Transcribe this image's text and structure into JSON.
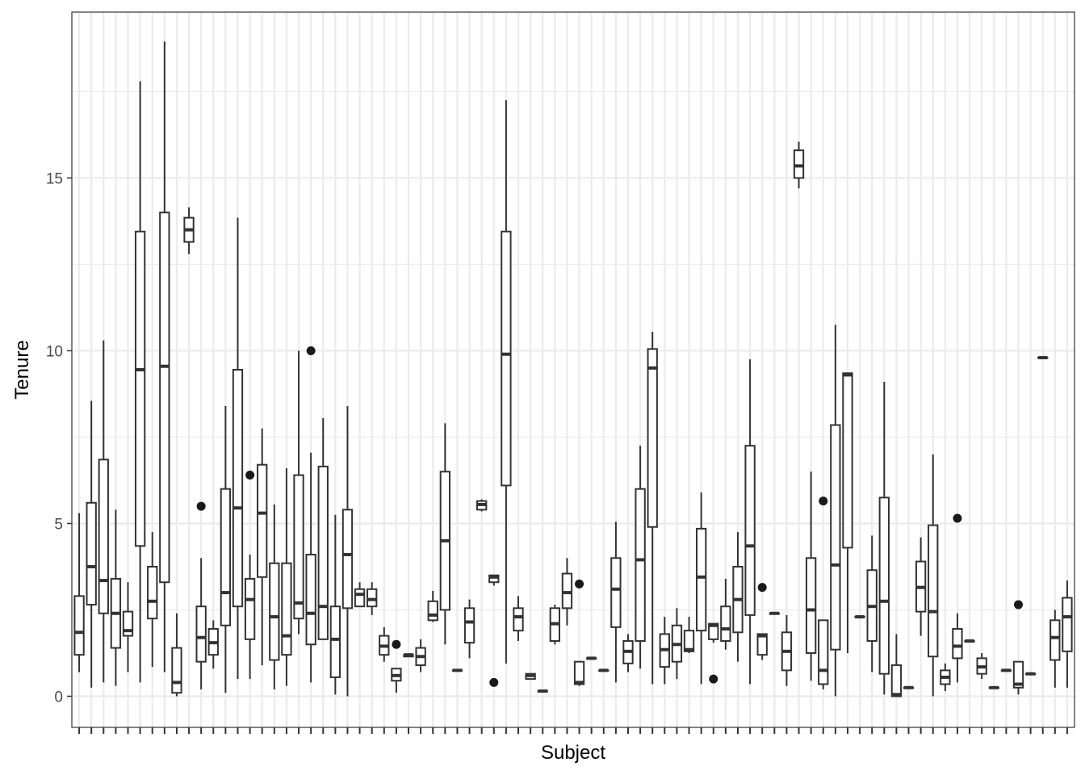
{
  "chart_data": {
    "type": "boxplot",
    "xlabel": "Subject",
    "ylabel": "Tenure",
    "ylim": [
      -0.9,
      19.8
    ],
    "y_ticks": [
      0,
      5,
      10,
      15
    ],
    "y_tick_labels": [
      "0",
      "5",
      "10",
      "15"
    ],
    "x_tick_labels_visible": false,
    "grid": true,
    "legend": "none",
    "theme": "bw",
    "colors": {
      "box_line": "#333333",
      "outlier": "#1a1a1a",
      "grid": "#ebebeb",
      "panel_border": "#333333"
    },
    "boxes": [
      {
        "lw": 0.7,
        "q1": 1.2,
        "med": 1.85,
        "q3": 2.9,
        "up": 5.3
      },
      {
        "lw": 0.25,
        "q1": 2.65,
        "med": 3.75,
        "q3": 5.6,
        "up": 8.55
      },
      {
        "lw": 0.4,
        "q1": 2.4,
        "med": 3.35,
        "q3": 6.85,
        "up": 10.3
      },
      {
        "lw": 0.3,
        "q1": 1.4,
        "med": 2.4,
        "q3": 3.4,
        "up": 5.4
      },
      {
        "lw": 0.7,
        "q1": 1.75,
        "med": 1.9,
        "q3": 2.45,
        "up": 3.3
      },
      {
        "lw": 0.4,
        "q1": 4.35,
        "med": 9.45,
        "q3": 13.45,
        "up": 17.8
      },
      {
        "lw": 0.85,
        "q1": 2.25,
        "med": 2.75,
        "q3": 3.75,
        "up": 4.75
      },
      {
        "lw": 0.7,
        "q1": 3.3,
        "med": 9.55,
        "q3": 14.0,
        "up": 18.95
      },
      {
        "lw": 0.0,
        "q1": 0.1,
        "med": 0.4,
        "q3": 1.4,
        "up": 2.4
      },
      {
        "lw": 12.8,
        "q1": 13.15,
        "med": 13.5,
        "q3": 13.85,
        "up": 14.15
      },
      {
        "lw": 0.2,
        "q1": 1.0,
        "med": 1.7,
        "q3": 2.6,
        "up": 4.0,
        "out": [
          5.5
        ]
      },
      {
        "lw": 0.8,
        "q1": 1.2,
        "med": 1.55,
        "q3": 1.95,
        "up": 2.2
      },
      {
        "lw": 0.1,
        "q1": 2.05,
        "med": 3.0,
        "q3": 6.0,
        "up": 8.4
      },
      {
        "lw": 0.5,
        "q1": 2.6,
        "med": 5.45,
        "q3": 9.45,
        "up": 13.85
      },
      {
        "lw": 0.5,
        "q1": 1.65,
        "med": 2.8,
        "q3": 3.4,
        "up": 4.1,
        "out": [
          6.4
        ]
      },
      {
        "lw": 0.9,
        "q1": 3.45,
        "med": 5.3,
        "q3": 6.7,
        "up": 7.75
      },
      {
        "lw": 0.2,
        "q1": 1.05,
        "med": 2.3,
        "q3": 3.85,
        "up": 5.55
      },
      {
        "lw": 0.3,
        "q1": 1.2,
        "med": 1.75,
        "q3": 3.85,
        "up": 6.6
      },
      {
        "lw": 1.8,
        "q1": 2.25,
        "med": 2.7,
        "q3": 6.4,
        "up": 10.0
      },
      {
        "lw": 0.4,
        "q1": 1.5,
        "med": 2.4,
        "q3": 4.1,
        "up": 7.05,
        "out": [
          10.0
        ]
      },
      {
        "lw": 1.7,
        "q1": 1.65,
        "med": 2.6,
        "q3": 6.65,
        "up": 8.05
      },
      {
        "lw": 0.05,
        "q1": 0.55,
        "med": 1.65,
        "q3": 2.6,
        "up": 5.25
      },
      {
        "lw": 0.0,
        "q1": 2.55,
        "med": 4.1,
        "q3": 5.4,
        "up": 8.4
      },
      {
        "lw": 2.6,
        "q1": 2.6,
        "med": 2.95,
        "q3": 3.1,
        "up": 3.3
      },
      {
        "lw": 2.35,
        "q1": 2.6,
        "med": 2.8,
        "q3": 3.1,
        "up": 3.3
      },
      {
        "lw": 1.0,
        "q1": 1.2,
        "med": 1.45,
        "q3": 1.75,
        "up": 2.0
      },
      {
        "lw": 0.1,
        "q1": 0.45,
        "med": 0.6,
        "q3": 0.8,
        "up": 0.8,
        "out": [
          1.5
        ]
      },
      {
        "lw": 1.15,
        "q1": 1.15,
        "med": 1.2,
        "q3": 1.2,
        "up": 1.2
      },
      {
        "lw": 0.7,
        "q1": 0.9,
        "med": 1.15,
        "q3": 1.4,
        "up": 1.65
      },
      {
        "lw": 2.15,
        "q1": 2.2,
        "med": 2.35,
        "q3": 2.75,
        "up": 3.05
      },
      {
        "lw": 1.5,
        "q1": 2.5,
        "med": 4.5,
        "q3": 6.5,
        "up": 7.9
      },
      {
        "lw": 0.75,
        "q1": 0.75,
        "med": 0.75,
        "q3": 0.75,
        "up": 0.75
      },
      {
        "lw": 1.1,
        "q1": 1.55,
        "med": 2.15,
        "q3": 2.55,
        "up": 2.8
      },
      {
        "lw": 5.35,
        "q1": 5.4,
        "med": 5.55,
        "q3": 5.65,
        "up": 5.7
      },
      {
        "lw": 3.2,
        "q1": 3.3,
        "med": 3.45,
        "q3": 3.5,
        "up": 3.5,
        "out": [
          0.4
        ]
      },
      {
        "lw": 0.95,
        "q1": 6.1,
        "med": 9.9,
        "q3": 13.45,
        "up": 17.25
      },
      {
        "lw": 1.6,
        "q1": 1.9,
        "med": 2.3,
        "q3": 2.55,
        "up": 2.9
      },
      {
        "lw": 0.5,
        "q1": 0.5,
        "med": 0.6,
        "q3": 0.65,
        "up": 0.65
      },
      {
        "lw": 0.15,
        "q1": 0.15,
        "med": 0.15,
        "q3": 0.15,
        "up": 0.15
      },
      {
        "lw": 1.5,
        "q1": 1.6,
        "med": 2.1,
        "q3": 2.55,
        "up": 2.65
      },
      {
        "lw": 2.05,
        "q1": 2.55,
        "med": 3.0,
        "q3": 3.55,
        "up": 4.0
      },
      {
        "lw": 0.3,
        "q1": 0.35,
        "med": 0.4,
        "q3": 1.0,
        "up": 1.0,
        "out": [
          3.25
        ]
      },
      {
        "lw": 1.1,
        "q1": 1.1,
        "med": 1.1,
        "q3": 1.1,
        "up": 1.1
      },
      {
        "lw": 0.75,
        "q1": 0.75,
        "med": 0.75,
        "q3": 0.75,
        "up": 0.75
      },
      {
        "lw": 0.4,
        "q1": 2.0,
        "med": 3.1,
        "q3": 4.0,
        "up": 5.05
      },
      {
        "lw": 0.7,
        "q1": 0.95,
        "med": 1.3,
        "q3": 1.6,
        "up": 1.8
      },
      {
        "lw": 0.8,
        "q1": 1.6,
        "med": 3.95,
        "q3": 6.0,
        "up": 7.25
      },
      {
        "lw": 0.35,
        "q1": 4.9,
        "med": 9.5,
        "q3": 10.05,
        "up": 10.55
      },
      {
        "lw": 0.35,
        "q1": 0.85,
        "med": 1.35,
        "q3": 1.8,
        "up": 2.3
      },
      {
        "lw": 0.5,
        "q1": 1.0,
        "med": 1.5,
        "q3": 2.05,
        "up": 2.55
      },
      {
        "lw": 1.25,
        "q1": 1.3,
        "med": 1.35,
        "q3": 1.9,
        "up": 2.3
      },
      {
        "lw": 0.35,
        "q1": 1.9,
        "med": 3.45,
        "q3": 4.85,
        "up": 5.9
      },
      {
        "lw": 1.55,
        "q1": 1.65,
        "med": 2.05,
        "q3": 2.1,
        "up": 2.1,
        "out": [
          0.5
        ]
      },
      {
        "lw": 1.35,
        "q1": 1.6,
        "med": 1.95,
        "q3": 2.6,
        "up": 3.4
      },
      {
        "lw": 1.0,
        "q1": 1.85,
        "med": 2.8,
        "q3": 3.75,
        "up": 4.75
      },
      {
        "lw": 0.35,
        "q1": 2.35,
        "med": 4.35,
        "q3": 7.25,
        "up": 9.75
      },
      {
        "lw": 1.05,
        "q1": 1.2,
        "med": 1.75,
        "q3": 1.8,
        "up": 1.8,
        "out": [
          3.15
        ]
      },
      {
        "lw": 2.4,
        "q1": 2.4,
        "med": 2.4,
        "q3": 2.4,
        "up": 2.4
      },
      {
        "lw": 0.3,
        "q1": 0.75,
        "med": 1.3,
        "q3": 1.85,
        "up": 2.35
      },
      {
        "lw": 14.7,
        "q1": 15.0,
        "med": 15.35,
        "q3": 15.8,
        "up": 16.05
      },
      {
        "lw": 0.45,
        "q1": 1.25,
        "med": 2.5,
        "q3": 4.0,
        "up": 6.5
      },
      {
        "lw": 0.2,
        "q1": 0.35,
        "med": 0.75,
        "q3": 2.2,
        "up": 2.2,
        "out": [
          5.65
        ]
      },
      {
        "lw": 0.0,
        "q1": 1.35,
        "med": 3.8,
        "q3": 7.85,
        "up": 10.75
      },
      {
        "lw": 1.25,
        "q1": 4.3,
        "med": 9.3,
        "q3": 9.35,
        "up": 9.35
      },
      {
        "lw": 2.3,
        "q1": 2.3,
        "med": 2.3,
        "q3": 2.3,
        "up": 2.3
      },
      {
        "lw": 0.7,
        "q1": 1.6,
        "med": 2.6,
        "q3": 3.65,
        "up": 4.65
      },
      {
        "lw": 0.05,
        "q1": 0.65,
        "med": 2.75,
        "q3": 5.75,
        "up": 9.1
      },
      {
        "lw": 0.0,
        "q1": 0.0,
        "med": 0.05,
        "q3": 0.9,
        "up": 1.8
      },
      {
        "lw": 0.25,
        "q1": 0.25,
        "med": 0.25,
        "q3": 0.25,
        "up": 0.25
      },
      {
        "lw": 1.75,
        "q1": 2.45,
        "med": 3.15,
        "q3": 3.9,
        "up": 4.6
      },
      {
        "lw": 0.0,
        "q1": 1.15,
        "med": 2.45,
        "q3": 4.95,
        "up": 7.0
      },
      {
        "lw": 0.15,
        "q1": 0.35,
        "med": 0.55,
        "q3": 0.75,
        "up": 0.95
      },
      {
        "lw": 0.4,
        "q1": 1.1,
        "med": 1.45,
        "q3": 1.95,
        "up": 2.4,
        "out": [
          5.15
        ]
      },
      {
        "lw": 1.6,
        "q1": 1.6,
        "med": 1.6,
        "q3": 1.6,
        "up": 1.6
      },
      {
        "lw": 0.5,
        "q1": 0.65,
        "med": 0.85,
        "q3": 1.1,
        "up": 1.25
      },
      {
        "lw": 0.25,
        "q1": 0.25,
        "med": 0.25,
        "q3": 0.25,
        "up": 0.25
      },
      {
        "lw": 0.75,
        "q1": 0.75,
        "med": 0.75,
        "q3": 0.75,
        "up": 0.75
      },
      {
        "lw": 0.05,
        "q1": 0.25,
        "med": 0.35,
        "q3": 1.0,
        "up": 1.0,
        "out": [
          2.65
        ]
      },
      {
        "lw": 0.65,
        "q1": 0.65,
        "med": 0.65,
        "q3": 0.65,
        "up": 0.65
      },
      {
        "lw": 9.8,
        "q1": 9.8,
        "med": 9.8,
        "q3": 9.8,
        "up": 9.8
      },
      {
        "lw": 0.25,
        "q1": 1.05,
        "med": 1.7,
        "q3": 2.2,
        "up": 2.5
      },
      {
        "lw": 0.25,
        "q1": 1.3,
        "med": 2.3,
        "q3": 2.85,
        "up": 3.35
      }
    ]
  }
}
